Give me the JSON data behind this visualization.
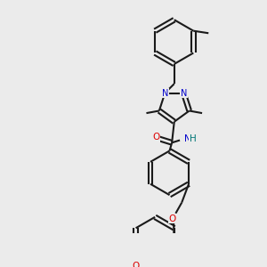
{
  "bg": "#ebebeb",
  "bc": "#1a1a1a",
  "nc": "#0000cc",
  "oc": "#dd0000",
  "hc": "#007777",
  "lw": 1.5,
  "doff": 0.008,
  "fig_w": 3.0,
  "fig_h": 3.0,
  "dpi": 100,
  "xlim": [
    0.0,
    1.0
  ],
  "ylim": [
    0.05,
    1.05
  ]
}
